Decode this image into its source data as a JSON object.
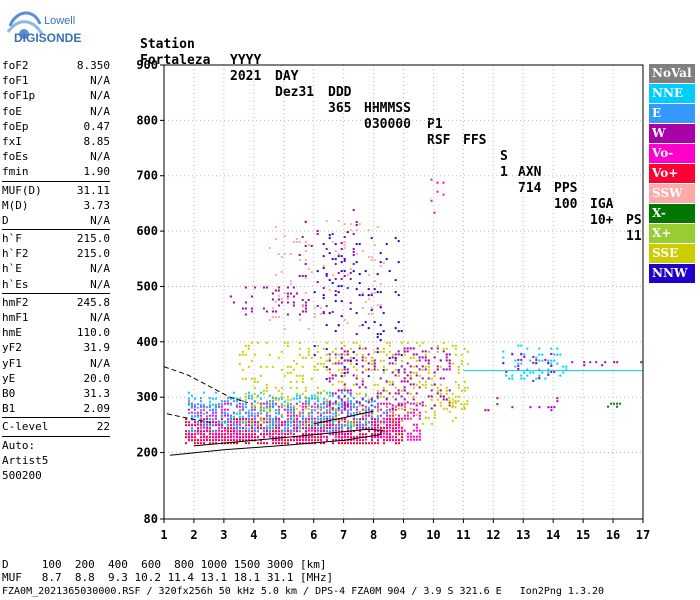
{
  "logo": {
    "top": "Lowell",
    "bottom": "DIGISONDE"
  },
  "header": {
    "labels": [
      "Station",
      "YYYY",
      "DAY",
      "DDD",
      "HHMMSS",
      "P1",
      "FFS",
      "S",
      "AXN",
      "PPS",
      "IGA",
      "PS"
    ],
    "values": [
      "Fortaleza",
      "2021",
      "Dez31",
      "365",
      "030000",
      "RSF",
      "",
      "1",
      "714",
      "100",
      "10+",
      "11"
    ]
  },
  "params": {
    "group1": [
      {
        "name": "foF2",
        "value": "8.350"
      },
      {
        "name": "foF1",
        "value": "N/A"
      },
      {
        "name": "foF1p",
        "value": "N/A"
      },
      {
        "name": "foE",
        "value": "N/A"
      },
      {
        "name": "foEp",
        "value": "0.47"
      },
      {
        "name": "fxI",
        "value": "8.85"
      },
      {
        "name": "foEs",
        "value": "N/A"
      },
      {
        "name": "fmin",
        "value": "1.90"
      }
    ],
    "group2": [
      {
        "name": "MUF(D)",
        "value": "31.11"
      },
      {
        "name": "M(D)",
        "value": "3.73"
      },
      {
        "name": "D",
        "value": "N/A"
      }
    ],
    "group3": [
      {
        "name": "h`F",
        "value": "215.0"
      },
      {
        "name": "h`F2",
        "value": "215.0"
      },
      {
        "name": "h`E",
        "value": "N/A"
      },
      {
        "name": "h`Es",
        "value": "N/A"
      }
    ],
    "group4": [
      {
        "name": "hmF2",
        "value": "245.8"
      },
      {
        "name": "hmF1",
        "value": "N/A"
      },
      {
        "name": "hmE",
        "value": "110.0"
      },
      {
        "name": "yF2",
        "value": "31.9"
      },
      {
        "name": "yF1",
        "value": "N/A"
      },
      {
        "name": "yE",
        "value": "20.0"
      },
      {
        "name": "B0",
        "value": "31.3"
      },
      {
        "name": "B1",
        "value": "2.09"
      }
    ],
    "group5": [
      {
        "name": "C-level",
        "value": "22"
      }
    ],
    "auto": [
      "Auto:",
      "Artist5",
      "500200"
    ]
  },
  "legend": [
    {
      "label": "NoVal",
      "color": "#808080"
    },
    {
      "label": "NNE",
      "color": "#00ccff"
    },
    {
      "label": "E",
      "color": "#3399ff"
    },
    {
      "label": "W",
      "color": "#aa00aa"
    },
    {
      "label": "Vo-",
      "color": "#ff00cc"
    },
    {
      "label": "Vo+",
      "color": "#ff0033"
    },
    {
      "label": "SSW",
      "color": "#ffaaaa"
    },
    {
      "label": "X-",
      "color": "#007700"
    },
    {
      "label": "X+",
      "color": "#99cc33"
    },
    {
      "label": "SSE",
      "color": "#cccc00"
    },
    {
      "label": "NNW",
      "color": "#2200cc"
    }
  ],
  "footer": {
    "line1": "D     100  200  400  600  800 1000 1500 3000 [km]",
    "line2": "MUF   8.7  8.8  9.3 10.2 11.4 13.1 18.1 31.1 [MHz]",
    "line3": "FZA0M_2021365030000.RSF / 320fx256h 50 kHz 5.0 km / DPS-4 FZA0M 904 / 3.9 S 321.6 E   Ion2Png 1.3.20"
  },
  "chart_data": {
    "type": "scatter",
    "title": "",
    "xlabel": "",
    "ylabel": "",
    "xlim": [
      1,
      17
    ],
    "ylim": [
      80,
      900
    ],
    "xticks": [
      1,
      2,
      3,
      4,
      5,
      6,
      7,
      8,
      9,
      10,
      11,
      12,
      13,
      14,
      15,
      16,
      17
    ],
    "yticks": [
      80,
      200,
      300,
      400,
      500,
      600,
      700,
      800,
      900
    ],
    "grid": true,
    "legend_position": "right",
    "echo_clusters": [
      {
        "series": "Vo+",
        "x": [
          1.7,
          9.0
        ],
        "y": [
          218,
          262
        ],
        "density": 0.75
      },
      {
        "series": "Vo-",
        "x": [
          1.8,
          9.6
        ],
        "y": [
          222,
          290
        ],
        "density": 0.45
      },
      {
        "series": "E",
        "x": [
          1.8,
          8.5
        ],
        "y": [
          235,
          300
        ],
        "density": 0.3
      },
      {
        "series": "NNE",
        "x": [
          1.8,
          8.0
        ],
        "y": [
          240,
          310
        ],
        "density": 0.25
      },
      {
        "series": "SSE",
        "x": [
          3.5,
          11.2
        ],
        "y": [
          250,
          400
        ],
        "density": 0.18
      },
      {
        "series": "W",
        "x": [
          6.5,
          10.6
        ],
        "y": [
          280,
          390
        ],
        "density": 0.2
      },
      {
        "series": "W",
        "x": [
          3.2,
          5.8
        ],
        "y": [
          450,
          500
        ],
        "density": 0.18
      },
      {
        "series": "SSW",
        "x": [
          4.5,
          8.5
        ],
        "y": [
          420,
          620
        ],
        "density": 0.06
      },
      {
        "series": "NNW",
        "x": [
          6.0,
          9.0
        ],
        "y": [
          330,
          600
        ],
        "density": 0.05
      },
      {
        "series": "W",
        "x": [
          5.5,
          7.5
        ],
        "y": [
          450,
          640
        ],
        "density": 0.07
      },
      {
        "series": "NNE",
        "x": [
          12.3,
          14.5
        ],
        "y": [
          335,
          395
        ],
        "density": 0.25
      },
      {
        "series": "W",
        "x": [
          12.3,
          14.2
        ],
        "y": [
          330,
          380
        ],
        "density": 0.12
      },
      {
        "series": "Vo-",
        "x": [
          9.8,
          10.5
        ],
        "y": [
          630,
          700
        ],
        "density": 0.08
      },
      {
        "series": "SSE",
        "x": [
          10.5,
          11.2
        ],
        "y": [
          280,
          300
        ],
        "density": 0.35
      },
      {
        "series": "W",
        "x": [
          11.3,
          14.5
        ],
        "y": [
          275,
          300
        ],
        "density": 0.08
      },
      {
        "series": "W",
        "x": [
          14.5,
          17.0
        ],
        "y": [
          355,
          365
        ],
        "density": 0.2
      },
      {
        "series": "X-",
        "x": [
          15.8,
          16.3
        ],
        "y": [
          282,
          290
        ],
        "density": 0.4
      }
    ],
    "trace_lines": [
      {
        "name": "lower",
        "style": "solid",
        "points": [
          [
            1.2,
            195
          ],
          [
            3.0,
            205
          ],
          [
            5.0,
            213
          ],
          [
            7.0,
            222
          ],
          [
            8.2,
            232
          ],
          [
            8.3,
            240
          ],
          [
            7.8,
            242
          ],
          [
            6.0,
            232
          ],
          [
            4.0,
            222
          ],
          [
            2.0,
            212
          ]
        ]
      },
      {
        "name": "dashed",
        "style": "dashed",
        "points": [
          [
            1.0,
            355
          ],
          [
            1.8,
            340
          ],
          [
            2.5,
            320
          ],
          [
            3.2,
            300
          ],
          [
            3.8,
            290
          ]
        ]
      },
      {
        "name": "dashed-lower",
        "style": "dashed",
        "points": [
          [
            1.1,
            270
          ],
          [
            1.8,
            262
          ],
          [
            2.6,
            254
          ]
        ]
      },
      {
        "name": "solid-mid",
        "style": "solid",
        "points": [
          [
            6.0,
            252
          ],
          [
            7.0,
            263
          ],
          [
            8.0,
            275
          ]
        ]
      },
      {
        "name": "cyan-horizontal",
        "style": "solid",
        "color": "#00ccff",
        "points": [
          [
            11.0,
            348
          ],
          [
            17.0,
            348
          ]
        ]
      }
    ]
  }
}
